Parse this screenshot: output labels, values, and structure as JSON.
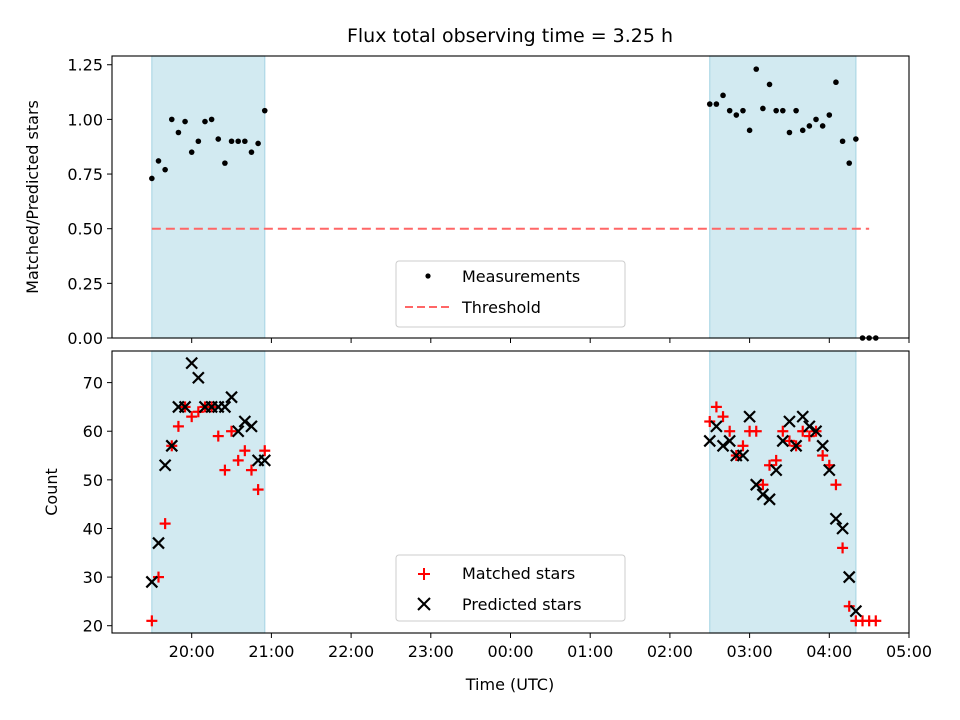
{
  "figure": {
    "title": "Flux total observing time = 3.25 h",
    "xlabel": "Time (UTC)",
    "xticks": [
      "20:00",
      "21:00",
      "22:00",
      "23:00",
      "00:00",
      "01:00",
      "02:00",
      "03:00",
      "04:00",
      "05:00"
    ]
  },
  "colors": {
    "shade": "#add8e6",
    "measurements": "#000000",
    "threshold": "#ff6666",
    "matched": "#ff0000",
    "predicted": "#000000"
  },
  "chart_data": [
    {
      "type": "scatter",
      "ylabel": "Matched/Predicted stars",
      "ylim": [
        0,
        1.29
      ],
      "yticks": [
        "0.00",
        "0.25",
        "0.50",
        "0.75",
        "1.00",
        "1.25"
      ],
      "xlim": [
        "19:00",
        "05:00"
      ],
      "shaded_intervals": [
        [
          "19:30",
          "20:55"
        ],
        [
          "02:30",
          "04:20"
        ]
      ],
      "legend": {
        "placement": "lower center",
        "entries": [
          "Measurements",
          "Threshold"
        ]
      },
      "threshold": {
        "name": "Threshold",
        "y": 0.5,
        "x_range": [
          "19:30",
          "04:30"
        ]
      },
      "series": [
        {
          "name": "Measurements",
          "points": [
            [
              "19:30",
              0.73
            ],
            [
              "19:35",
              0.81
            ],
            [
              "19:40",
              0.77
            ],
            [
              "19:45",
              1.0
            ],
            [
              "19:50",
              0.94
            ],
            [
              "19:55",
              0.99
            ],
            [
              "20:00",
              0.85
            ],
            [
              "20:05",
              0.9
            ],
            [
              "20:10",
              0.99
            ],
            [
              "20:15",
              1.0
            ],
            [
              "20:20",
              0.91
            ],
            [
              "20:25",
              0.8
            ],
            [
              "20:30",
              0.9
            ],
            [
              "20:35",
              0.9
            ],
            [
              "20:40",
              0.9
            ],
            [
              "20:45",
              0.85
            ],
            [
              "20:50",
              0.89
            ],
            [
              "20:55",
              1.04
            ],
            [
              "02:30",
              1.07
            ],
            [
              "02:35",
              1.07
            ],
            [
              "02:40",
              1.11
            ],
            [
              "02:45",
              1.04
            ],
            [
              "02:50",
              1.02
            ],
            [
              "02:55",
              1.04
            ],
            [
              "03:00",
              0.95
            ],
            [
              "03:05",
              1.23
            ],
            [
              "03:10",
              1.05
            ],
            [
              "03:15",
              1.16
            ],
            [
              "03:20",
              1.04
            ],
            [
              "03:25",
              1.04
            ],
            [
              "03:30",
              0.94
            ],
            [
              "03:35",
              1.04
            ],
            [
              "03:40",
              0.95
            ],
            [
              "03:45",
              0.97
            ],
            [
              "03:50",
              1.0
            ],
            [
              "03:55",
              0.97
            ],
            [
              "04:00",
              1.02
            ],
            [
              "04:05",
              1.17
            ],
            [
              "04:10",
              0.9
            ],
            [
              "04:15",
              0.8
            ],
            [
              "04:20",
              0.91
            ],
            [
              "04:25",
              0.0
            ],
            [
              "04:30",
              0.0
            ],
            [
              "04:35",
              0.0
            ]
          ]
        }
      ]
    },
    {
      "type": "scatter",
      "ylabel": "Count",
      "ylim": [
        18.5,
        76.5
      ],
      "yticks": [
        "20",
        "30",
        "40",
        "50",
        "60",
        "70"
      ],
      "xlim": [
        "19:00",
        "05:00"
      ],
      "shaded_intervals": [
        [
          "19:30",
          "20:55"
        ],
        [
          "02:30",
          "04:20"
        ]
      ],
      "legend": {
        "placement": "lower center",
        "entries": [
          "Matched stars",
          "Predicted stars"
        ]
      },
      "series": [
        {
          "name": "Matched stars",
          "points": [
            [
              "19:30",
              21
            ],
            [
              "19:35",
              30
            ],
            [
              "19:40",
              41
            ],
            [
              "19:45",
              57
            ],
            [
              "19:50",
              61
            ],
            [
              "19:55",
              65
            ],
            [
              "20:00",
              63
            ],
            [
              "20:05",
              64
            ],
            [
              "20:10",
              65
            ],
            [
              "20:15",
              65
            ],
            [
              "20:20",
              59
            ],
            [
              "20:25",
              52
            ],
            [
              "20:30",
              60
            ],
            [
              "20:35",
              54
            ],
            [
              "20:40",
              56
            ],
            [
              "20:45",
              52
            ],
            [
              "20:50",
              48
            ],
            [
              "20:55",
              56
            ],
            [
              "02:30",
              62
            ],
            [
              "02:35",
              65
            ],
            [
              "02:40",
              63
            ],
            [
              "02:45",
              60
            ],
            [
              "02:50",
              55
            ],
            [
              "02:55",
              57
            ],
            [
              "03:00",
              60
            ],
            [
              "03:05",
              60
            ],
            [
              "03:10",
              49
            ],
            [
              "03:15",
              53
            ],
            [
              "03:20",
              54
            ],
            [
              "03:25",
              60
            ],
            [
              "03:30",
              58
            ],
            [
              "03:35",
              57
            ],
            [
              "03:40",
              60
            ],
            [
              "03:45",
              59
            ],
            [
              "03:50",
              60
            ],
            [
              "03:55",
              55
            ],
            [
              "04:00",
              53
            ],
            [
              "04:05",
              49
            ],
            [
              "04:10",
              36
            ],
            [
              "04:15",
              24
            ],
            [
              "04:20",
              21
            ],
            [
              "04:25",
              21
            ],
            [
              "04:30",
              21
            ],
            [
              "04:35",
              21
            ]
          ]
        },
        {
          "name": "Predicted stars",
          "points": [
            [
              "19:30",
              29
            ],
            [
              "19:35",
              37
            ],
            [
              "19:40",
              53
            ],
            [
              "19:45",
              57
            ],
            [
              "19:50",
              65
            ],
            [
              "19:55",
              65
            ],
            [
              "20:00",
              74
            ],
            [
              "20:05",
              71
            ],
            [
              "20:10",
              65
            ],
            [
              "20:15",
              65
            ],
            [
              "20:20",
              65
            ],
            [
              "20:25",
              65
            ],
            [
              "20:30",
              67
            ],
            [
              "20:35",
              60
            ],
            [
              "20:40",
              62
            ],
            [
              "20:45",
              61
            ],
            [
              "20:50",
              54
            ],
            [
              "20:55",
              54
            ],
            [
              "02:30",
              58
            ],
            [
              "02:35",
              61
            ],
            [
              "02:40",
              57
            ],
            [
              "02:45",
              58
            ],
            [
              "02:50",
              55
            ],
            [
              "02:55",
              55
            ],
            [
              "03:00",
              63
            ],
            [
              "03:05",
              49
            ],
            [
              "03:10",
              47
            ],
            [
              "03:15",
              46
            ],
            [
              "03:20",
              52
            ],
            [
              "03:25",
              58
            ],
            [
              "03:30",
              62
            ],
            [
              "03:35",
              57
            ],
            [
              "03:40",
              63
            ],
            [
              "03:45",
              61
            ],
            [
              "03:50",
              60
            ],
            [
              "03:55",
              57
            ],
            [
              "04:00",
              52
            ],
            [
              "04:05",
              42
            ],
            [
              "04:10",
              40
            ],
            [
              "04:15",
              30
            ],
            [
              "04:20",
              23
            ]
          ]
        }
      ]
    }
  ]
}
